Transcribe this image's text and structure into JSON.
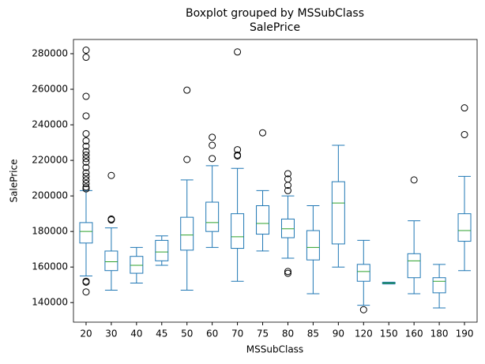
{
  "chart_data": {
    "type": "box",
    "title": "Boxplot grouped by MSSubClass",
    "subtitle": "SalePrice",
    "x_label": "MSSubClass",
    "y_label": "SalePrice",
    "box_color": "#1f77b4",
    "median_color": "#2ca02c",
    "categories": [
      "20",
      "30",
      "40",
      "45",
      "50",
      "60",
      "70",
      "75",
      "80",
      "85",
      "90",
      "120",
      "150",
      "160",
      "180",
      "190"
    ],
    "boxes": [
      {
        "whislo": 155000,
        "q1": 173500,
        "med": 180000,
        "q3": 185000,
        "whishi": 203000,
        "fliers": [
          282000,
          278000,
          256000,
          245000,
          235000,
          231000,
          228000,
          225000,
          223000,
          221000,
          219000,
          216000,
          213000,
          211000,
          209000,
          207000,
          205000,
          204000,
          152000,
          151500,
          146000
        ]
      },
      {
        "whislo": 147000,
        "q1": 158000,
        "med": 163000,
        "q3": 169000,
        "whishi": 182000,
        "fliers": [
          211500,
          187000,
          186500
        ]
      },
      {
        "whislo": 151000,
        "q1": 156500,
        "med": 161000,
        "q3": 166000,
        "whishi": 171000,
        "fliers": []
      },
      {
        "whislo": 161000,
        "q1": 163500,
        "med": 168500,
        "q3": 175000,
        "whishi": 177500,
        "fliers": []
      },
      {
        "whislo": 147000,
        "q1": 169500,
        "med": 178000,
        "q3": 188000,
        "whishi": 209000,
        "fliers": [
          259500,
          220500
        ]
      },
      {
        "whislo": 171000,
        "q1": 180000,
        "med": 185000,
        "q3": 196500,
        "whishi": 217000,
        "fliers": [
          233000,
          228500,
          221000
        ]
      },
      {
        "whislo": 152000,
        "q1": 170500,
        "med": 177000,
        "q3": 190000,
        "whishi": 215500,
        "fliers": [
          281000,
          226000,
          223000,
          222500
        ]
      },
      {
        "whislo": 169000,
        "q1": 178500,
        "med": 184500,
        "q3": 194500,
        "whishi": 203000,
        "fliers": [
          235500
        ]
      },
      {
        "whislo": 165000,
        "q1": 176500,
        "med": 181500,
        "q3": 187000,
        "whishi": 200000,
        "fliers": [
          212500,
          209500,
          206000,
          203000,
          157500,
          156500
        ]
      },
      {
        "whislo": 145000,
        "q1": 164000,
        "med": 171000,
        "q3": 180500,
        "whishi": 194500,
        "fliers": []
      },
      {
        "whislo": 160000,
        "q1": 173000,
        "med": 196000,
        "q3": 208000,
        "whishi": 228500,
        "fliers": []
      },
      {
        "whislo": 138500,
        "q1": 152000,
        "med": 157500,
        "q3": 161500,
        "whishi": 175000,
        "fliers": [
          136000
        ]
      },
      {
        "whislo": 150500,
        "q1": 150700,
        "med": 151000,
        "q3": 151300,
        "whishi": 151500,
        "fliers": []
      },
      {
        "whislo": 145000,
        "q1": 154000,
        "med": 163500,
        "q3": 167500,
        "whishi": 186000,
        "fliers": [
          209000
        ]
      },
      {
        "whislo": 137000,
        "q1": 145500,
        "med": 152000,
        "q3": 154000,
        "whishi": 161500,
        "fliers": []
      },
      {
        "whislo": 158000,
        "q1": 174500,
        "med": 180500,
        "q3": 190000,
        "whishi": 211000,
        "fliers": [
          249500,
          234500
        ]
      }
    ],
    "ylim": [
      129000,
      288000
    ],
    "yticks": [
      140000,
      160000,
      180000,
      200000,
      220000,
      240000,
      260000,
      280000
    ]
  }
}
